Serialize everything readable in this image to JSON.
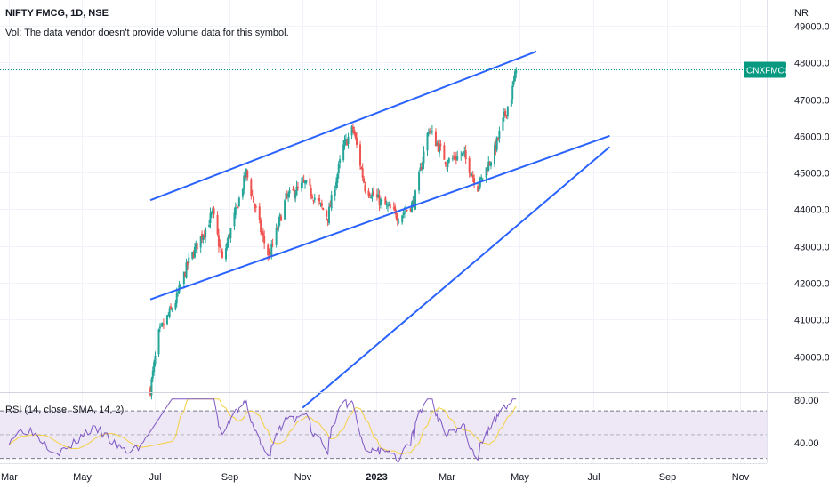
{
  "header": {
    "title": "NIFTY FMCG, 1D, NSE",
    "volume_note": "Vol: The data vendor doesn't provide volume data for this symbol."
  },
  "price_axis": {
    "currency": "INR",
    "last_price_label": "CNXFMCG",
    "last_price": 47800
  },
  "rsi_panel": {
    "label": "RSI (14, close, SMA, 14, 2)",
    "ticks": [
      "80.00",
      "40.00"
    ]
  },
  "colors": {
    "up": "#26a69a",
    "down": "#ef5350",
    "trendline": "#2962ff",
    "rsi": "#7e57c2",
    "rsi_ma": "#f5d142",
    "rsi_band": "#ede7f6",
    "badge": "#089981"
  },
  "chart_data": {
    "type": "candlestick",
    "x_ticks": [
      "Mar",
      "May",
      "Jul",
      "Sep",
      "Nov",
      "2023",
      "Mar",
      "May",
      "Jul",
      "Sep",
      "Nov"
    ],
    "y_ticks": [
      "49000.00",
      "48000.00",
      "47000.00",
      "46000.00",
      "45000.00",
      "44000.00",
      "43000.00",
      "42000.00",
      "41000.00",
      "40000.00"
    ],
    "ylim": [
      39050,
      49700
    ],
    "anchor_closes": [
      {
        "date": "2022-06-27",
        "close": 39100
      },
      {
        "date": "2022-07-04",
        "close": 40600
      },
      {
        "date": "2022-07-18",
        "close": 41500
      },
      {
        "date": "2022-07-28",
        "close": 42500
      },
      {
        "date": "2022-08-18",
        "close": 43900
      },
      {
        "date": "2022-08-26",
        "close": 42600
      },
      {
        "date": "2022-09-15",
        "close": 45000
      },
      {
        "date": "2022-09-28",
        "close": 43300
      },
      {
        "date": "2022-10-04",
        "close": 42700
      },
      {
        "date": "2022-10-18",
        "close": 44300
      },
      {
        "date": "2022-11-03",
        "close": 44700
      },
      {
        "date": "2022-11-22",
        "close": 43800
      },
      {
        "date": "2022-12-05",
        "close": 45700
      },
      {
        "date": "2022-12-13",
        "close": 46200
      },
      {
        "date": "2022-12-23",
        "close": 44600
      },
      {
        "date": "2023-01-05",
        "close": 44200
      },
      {
        "date": "2023-01-20",
        "close": 43800
      },
      {
        "date": "2023-02-02",
        "close": 44200
      },
      {
        "date": "2023-02-14",
        "close": 46200
      },
      {
        "date": "2023-03-01",
        "close": 45300
      },
      {
        "date": "2023-03-15",
        "close": 45500
      },
      {
        "date": "2023-03-27",
        "close": 44600
      },
      {
        "date": "2023-04-10",
        "close": 45600
      },
      {
        "date": "2023-04-18",
        "close": 46500
      },
      {
        "date": "2023-04-24",
        "close": 47100
      },
      {
        "date": "2023-04-28",
        "close": 47800
      }
    ],
    "trendlines": [
      {
        "name": "channel-upper",
        "from": {
          "date": "2022-06-27",
          "value": 44250
        },
        "to": {
          "date": "2023-05-15",
          "value": 48300
        }
      },
      {
        "name": "channel-lower",
        "from": {
          "date": "2022-06-27",
          "value": 41550
        },
        "to": {
          "date": "2023-07-15",
          "value": 46000
        }
      },
      {
        "name": "long-support",
        "from": {
          "date": "2022-11-01",
          "value": 38600
        },
        "to": {
          "date": "2023-07-15",
          "value": 45700
        }
      }
    ],
    "rsi_ylim": [
      26,
      85
    ]
  }
}
